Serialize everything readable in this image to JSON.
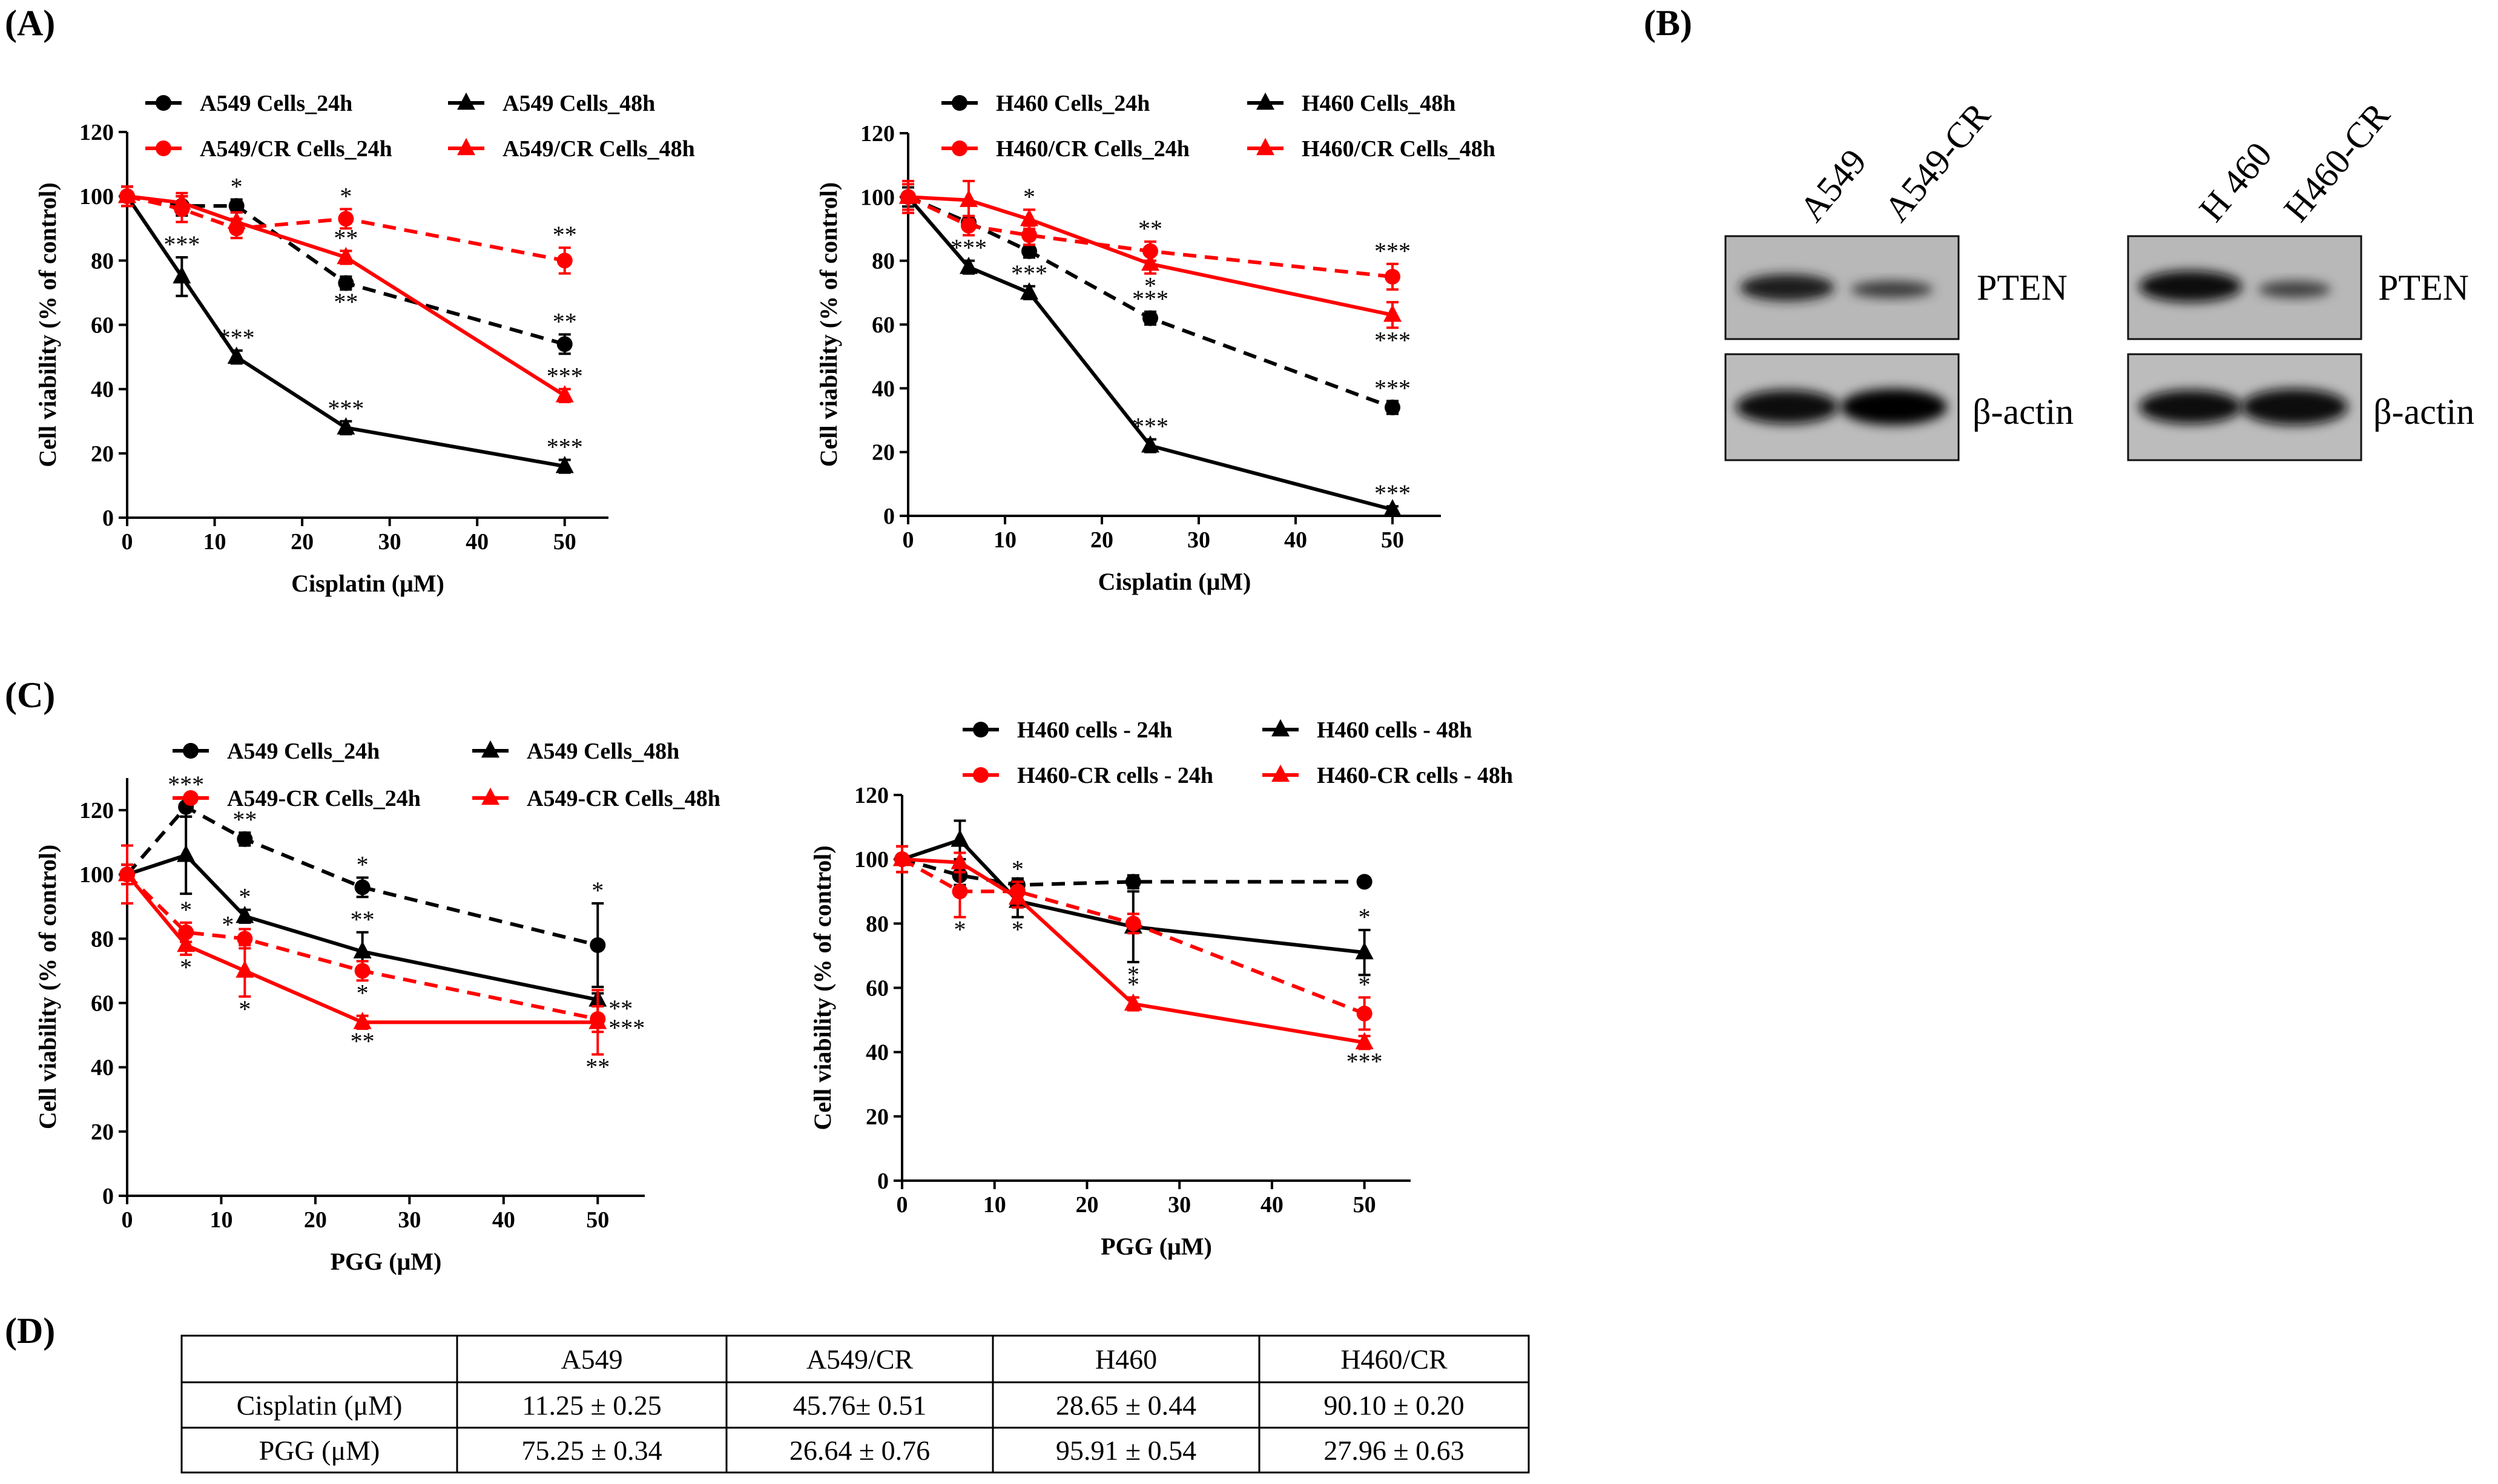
{
  "panels": {
    "A": "(A)",
    "B": "(B)",
    "C": "(C)",
    "D": "(D)"
  },
  "chart_data": [
    {
      "type": "line",
      "xlabel": "Cisplatin (μM)",
      "ylabel": "Cell viability (% of control)",
      "xlim": [
        0,
        55
      ],
      "ylim": [
        0,
        120
      ],
      "xticks": [
        0,
        10,
        20,
        30,
        40,
        50
      ],
      "yticks": [
        0,
        20,
        40,
        60,
        80,
        100,
        120
      ],
      "legend": "top",
      "series": [
        {
          "name": "A549 Cells_24h",
          "color": "#000000",
          "marker": "circle",
          "dash": true,
          "points": [
            [
              0,
              100
            ],
            [
              6.25,
              97
            ],
            [
              12.5,
              97
            ],
            [
              25,
              73
            ],
            [
              50,
              54
            ]
          ],
          "err": [
            3,
            3,
            2,
            2,
            3
          ],
          "sig": [
            "",
            "",
            "*",
            "**",
            "**"
          ],
          "sigpos": [
            "",
            "",
            "above",
            "below",
            "above"
          ]
        },
        {
          "name": "A549 Cells_48h",
          "color": "#000000",
          "marker": "triangle",
          "dash": false,
          "points": [
            [
              0,
              100
            ],
            [
              6.25,
              75
            ],
            [
              12.5,
              50
            ],
            [
              25,
              28
            ],
            [
              50,
              16
            ]
          ],
          "err": [
            3,
            6,
            2,
            2,
            2
          ],
          "sig": [
            "",
            "***",
            "***",
            "***",
            "***"
          ],
          "sigpos": [
            "",
            "above",
            "above",
            "above",
            "above"
          ]
        },
        {
          "name": "A549/CR Cells_24h",
          "color": "#ff0000",
          "marker": "circle",
          "dash": true,
          "points": [
            [
              0,
              100
            ],
            [
              6.25,
              96
            ],
            [
              12.5,
              90
            ],
            [
              25,
              93
            ],
            [
              50,
              80
            ]
          ],
          "err": [
            3,
            4,
            3,
            3,
            4
          ],
          "sig": [
            "",
            "",
            "",
            "*",
            "**"
          ],
          "sigpos": [
            "",
            "",
            "",
            "above",
            "above"
          ]
        },
        {
          "name": "A549/CR Cells_48h",
          "color": "#ff0000",
          "marker": "triangle",
          "dash": false,
          "points": [
            [
              0,
              100
            ],
            [
              6.25,
              98
            ],
            [
              12.5,
              92
            ],
            [
              25,
              81
            ],
            [
              50,
              38
            ]
          ],
          "err": [
            3,
            3,
            3,
            2,
            2
          ],
          "sig": [
            "",
            "",
            "",
            "**",
            "***"
          ],
          "sigpos": [
            "",
            "",
            "",
            "above",
            "above"
          ]
        }
      ]
    },
    {
      "type": "line",
      "xlabel": "Cisplatin (μM)",
      "ylabel": "Cell viability (% of control)",
      "xlim": [
        0,
        55
      ],
      "ylim": [
        0,
        120
      ],
      "xticks": [
        0,
        10,
        20,
        30,
        40,
        50
      ],
      "yticks": [
        0,
        20,
        40,
        60,
        80,
        100,
        120
      ],
      "legend": "top",
      "series": [
        {
          "name": "H460 Cells_24h",
          "color": "#000000",
          "marker": "circle",
          "dash": true,
          "points": [
            [
              0,
              100
            ],
            [
              6.25,
              92
            ],
            [
              12.5,
              83
            ],
            [
              25,
              62
            ],
            [
              50,
              34
            ]
          ],
          "err": [
            3,
            2,
            2,
            2,
            2
          ],
          "sig": [
            "",
            "",
            "",
            "***",
            "***"
          ],
          "sigpos": [
            "",
            "",
            "",
            "above",
            "above"
          ]
        },
        {
          "name": "H460 Cells_48h",
          "color": "#000000",
          "marker": "triangle",
          "dash": false,
          "points": [
            [
              0,
              100
            ],
            [
              6.25,
              78
            ],
            [
              12.5,
              70
            ],
            [
              25,
              22
            ],
            [
              50,
              2
            ]
          ],
          "err": [
            3,
            2,
            2,
            2,
            1
          ],
          "sig": [
            "",
            "***",
            "***",
            "***",
            "***"
          ],
          "sigpos": [
            "",
            "above",
            "above",
            "above",
            "above"
          ]
        },
        {
          "name": "H460/CR Cells_24h",
          "color": "#ff0000",
          "marker": "circle",
          "dash": true,
          "points": [
            [
              0,
              100
            ],
            [
              6.25,
              91
            ],
            [
              12.5,
              88
            ],
            [
              25,
              83
            ],
            [
              50,
              75
            ]
          ],
          "err": [
            5,
            3,
            3,
            3,
            4
          ],
          "sig": [
            "",
            "",
            "",
            "**",
            "***"
          ],
          "sigpos": [
            "",
            "",
            "",
            "above",
            "above"
          ]
        },
        {
          "name": "H460/CR Cells_48h",
          "color": "#ff0000",
          "marker": "triangle",
          "dash": false,
          "points": [
            [
              0,
              100
            ],
            [
              6.25,
              99
            ],
            [
              12.5,
              93
            ],
            [
              25,
              79
            ],
            [
              50,
              63
            ]
          ],
          "err": [
            4,
            6,
            3,
            3,
            4
          ],
          "sig": [
            "",
            "",
            "*",
            "*",
            "***"
          ],
          "sigpos": [
            "",
            "",
            "above",
            "below",
            "below"
          ]
        }
      ]
    },
    {
      "type": "line",
      "xlabel": "PGG (μM)",
      "ylabel": "Cell viability (% of control)",
      "xlim": [
        0,
        55
      ],
      "ylim": [
        0,
        130
      ],
      "xticks": [
        0,
        10,
        20,
        30,
        40,
        50
      ],
      "yticks": [
        0,
        20,
        40,
        60,
        80,
        100,
        120
      ],
      "legend": "top",
      "series": [
        {
          "name": "A549 Cells_24h",
          "color": "#000000",
          "marker": "circle",
          "dash": true,
          "points": [
            [
              0,
              100
            ],
            [
              6.25,
              121
            ],
            [
              12.5,
              111
            ],
            [
              25,
              96
            ],
            [
              50,
              78
            ]
          ],
          "err": [
            3,
            3,
            2,
            3,
            13
          ],
          "sig": [
            "",
            "***",
            "**",
            "*",
            "*"
          ],
          "sigpos": [
            "",
            "above",
            "above",
            "above",
            "above"
          ]
        },
        {
          "name": "A549 Cells_48h",
          "color": "#000000",
          "marker": "triangle",
          "dash": false,
          "points": [
            [
              0,
              100
            ],
            [
              6.25,
              106
            ],
            [
              12.5,
              87
            ],
            [
              25,
              76
            ],
            [
              50,
              61
            ]
          ],
          "err": [
            3,
            12,
            2,
            6,
            2
          ],
          "sig": [
            "",
            "",
            "*",
            "**",
            "**"
          ],
          "sigpos": [
            "",
            "",
            "above",
            "above",
            "right"
          ]
        },
        {
          "name": "A549-CR Cells_24h",
          "color": "#ff0000",
          "marker": "circle",
          "dash": true,
          "points": [
            [
              0,
              100
            ],
            [
              6.25,
              82
            ],
            [
              12.5,
              80
            ],
            [
              25,
              70
            ],
            [
              50,
              55
            ]
          ],
          "err": [
            9,
            3,
            3,
            3,
            4
          ],
          "sig": [
            "",
            "*",
            "*",
            "*",
            "***"
          ],
          "sigpos": [
            "",
            "above",
            "left",
            "below",
            "right"
          ]
        },
        {
          "name": "A549-CR Cells_48h",
          "color": "#ff0000",
          "marker": "triangle",
          "dash": false,
          "points": [
            [
              0,
              100
            ],
            [
              6.25,
              78
            ],
            [
              12.5,
              70
            ],
            [
              25,
              54
            ],
            [
              50,
              54
            ]
          ],
          "err": [
            3,
            3,
            8,
            2,
            10
          ],
          "sig": [
            "",
            "*",
            "*",
            "**",
            "**"
          ],
          "sigpos": [
            "",
            "below",
            "below",
            "below",
            "below"
          ]
        }
      ]
    },
    {
      "type": "line",
      "xlabel": "PGG (μM)",
      "ylabel": "Cell viability (% of control)",
      "xlim": [
        0,
        55
      ],
      "ylim": [
        0,
        120
      ],
      "xticks": [
        0,
        10,
        20,
        30,
        40,
        50
      ],
      "yticks": [
        0,
        20,
        40,
        60,
        80,
        100,
        120
      ],
      "legend": "top",
      "series": [
        {
          "name": "H460 cells - 24h",
          "color": "#000000",
          "marker": "circle",
          "dash": true,
          "points": [
            [
              0,
              100
            ],
            [
              6.25,
              95
            ],
            [
              12.5,
              92
            ],
            [
              25,
              93
            ],
            [
              50,
              93
            ]
          ],
          "err": [
            4,
            3,
            2,
            2,
            1
          ],
          "sig": [
            "",
            "",
            "",
            "",
            ""
          ],
          "sigpos": [
            "",
            "",
            "",
            "",
            ""
          ]
        },
        {
          "name": "H460 cells - 48h",
          "color": "#000000",
          "marker": "triangle",
          "dash": false,
          "points": [
            [
              0,
              100
            ],
            [
              6.25,
              106
            ],
            [
              12.5,
              87
            ],
            [
              25,
              79
            ],
            [
              50,
              71
            ]
          ],
          "err": [
            4,
            6,
            5,
            11,
            7
          ],
          "sig": [
            "",
            "",
            "*",
            "*",
            "*"
          ],
          "sigpos": [
            "",
            "",
            "below",
            "below",
            "above"
          ]
        },
        {
          "name": "H460-CR cells - 24h",
          "color": "#ff0000",
          "marker": "circle",
          "dash": true,
          "points": [
            [
              0,
              100
            ],
            [
              6.25,
              90
            ],
            [
              12.5,
              90
            ],
            [
              25,
              80
            ],
            [
              50,
              52
            ]
          ],
          "err": [
            4,
            8,
            3,
            3,
            5
          ],
          "sig": [
            "",
            "*",
            "*",
            "",
            "*"
          ],
          "sigpos": [
            "",
            "below",
            "above",
            "",
            "above"
          ]
        },
        {
          "name": "H460-CR cells - 48h",
          "color": "#ff0000",
          "marker": "triangle",
          "dash": false,
          "points": [
            [
              0,
              100
            ],
            [
              6.25,
              99
            ],
            [
              12.5,
              88
            ],
            [
              25,
              55
            ],
            [
              50,
              43
            ]
          ],
          "err": [
            4,
            3,
            3,
            2,
            2
          ],
          "sig": [
            "",
            "",
            "",
            "*",
            "***"
          ],
          "sigpos": [
            "",
            "",
            "",
            "above",
            "below"
          ]
        }
      ]
    },
    {
      "type": "table",
      "columns": [
        "",
        "A549",
        "A549/CR",
        "H460",
        "H460/CR"
      ],
      "rows": [
        [
          "Cisplatin (μM)",
          "11.25 ± 0.25",
          "45.76± 0.51",
          "28.65 ± 0.44",
          "90.10 ± 0.20"
        ],
        [
          "PGG (μM)",
          "75.25 ± 0.34",
          "26.64 ± 0.76",
          "95.91 ± 0.54",
          "27.96 ± 0.63"
        ]
      ]
    }
  ],
  "blot": {
    "left_lanes": [
      "A549",
      "A549-CR"
    ],
    "right_lanes": [
      "H 460",
      "H460-CR"
    ],
    "protein1": "PTEN",
    "protein2": "β-actin"
  }
}
